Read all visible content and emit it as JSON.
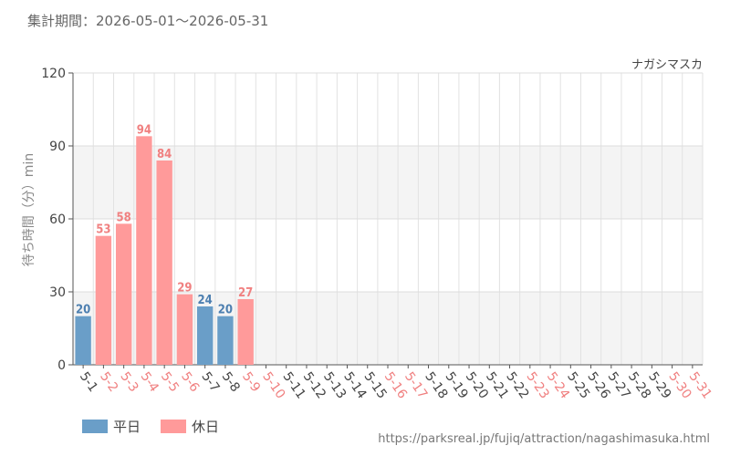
{
  "header": {
    "period": "集計期間：2026-05-01〜2026-05-31"
  },
  "chart_data": {
    "type": "bar",
    "attraction": "ナガシマスカ",
    "ylabel": "待ち時間（分）min",
    "xlabel": "",
    "ylim": [
      0,
      120
    ],
    "yticks": [
      0,
      30,
      60,
      90,
      120
    ],
    "grid": true,
    "categories": [
      "5-1",
      "5-2",
      "5-3",
      "5-4",
      "5-5",
      "5-6",
      "5-7",
      "5-8",
      "5-9",
      "5-10",
      "5-11",
      "5-12",
      "5-13",
      "5-14",
      "5-15",
      "5-16",
      "5-17",
      "5-18",
      "5-19",
      "5-20",
      "5-21",
      "5-22",
      "5-23",
      "5-24",
      "5-25",
      "5-26",
      "5-27",
      "5-28",
      "5-29",
      "5-30",
      "5-31"
    ],
    "values": [
      20,
      53,
      58,
      94,
      84,
      29,
      24,
      20,
      27,
      null,
      null,
      null,
      null,
      null,
      null,
      null,
      null,
      null,
      null,
      null,
      null,
      null,
      null,
      null,
      null,
      null,
      null,
      null,
      null,
      null,
      null
    ],
    "day_type": [
      "weekday",
      "holiday",
      "holiday",
      "holiday",
      "holiday",
      "holiday",
      "weekday",
      "weekday",
      "holiday",
      "holiday",
      "weekday",
      "weekday",
      "weekday",
      "weekday",
      "weekday",
      "holiday",
      "holiday",
      "weekday",
      "weekday",
      "weekday",
      "weekday",
      "weekday",
      "holiday",
      "holiday",
      "weekday",
      "weekday",
      "weekday",
      "weekday",
      "weekday",
      "holiday",
      "holiday"
    ],
    "colors": {
      "weekday": "#6a9ec8",
      "holiday": "#ff9a9a",
      "weekday_text": "#4d7fb0",
      "holiday_text": "#f08080",
      "label_weekday": "#444444",
      "label_holiday": "#f08080"
    },
    "legend": [
      {
        "key": "weekday",
        "label": "平日"
      },
      {
        "key": "holiday",
        "label": "休日"
      }
    ],
    "legend_position": "bottom-left"
  },
  "footer": {
    "source": "https://parksreal.jp/fujiq/attraction/nagashimasuka.html"
  }
}
